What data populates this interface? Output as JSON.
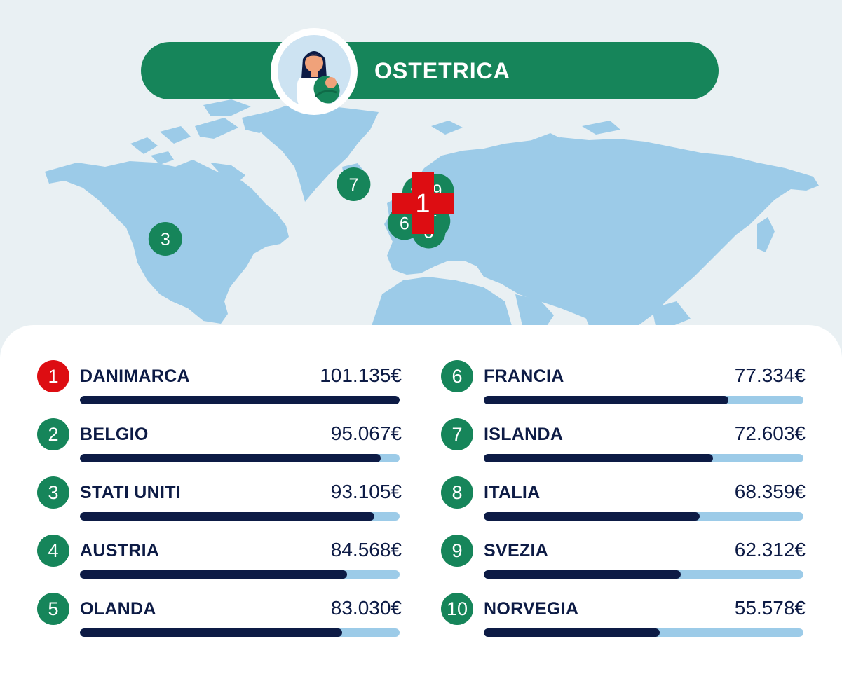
{
  "title": "OSTETRICA",
  "colors": {
    "background": "#e9f0f3",
    "land": "#9ccbe8",
    "green": "#16855a",
    "red": "#dd0d12",
    "navy": "#0d1b45"
  },
  "header": {
    "avatar_icon": "midwife-with-baby-icon"
  },
  "chart_data": {
    "type": "bar",
    "unit": "€",
    "xlim": [
      0,
      101135
    ],
    "categories": [
      "DANIMARCA",
      "BELGIO",
      "STATI UNITI",
      "AUSTRIA",
      "OLANDA",
      "FRANCIA",
      "ISLANDA",
      "ITALIA",
      "SVEZIA",
      "NORVEGIA"
    ],
    "values": [
      101135,
      95067,
      93105,
      84568,
      83030,
      77334,
      72603,
      68359,
      62312,
      55578
    ],
    "rows": [
      {
        "rank": "1",
        "country": "DANIMARCA",
        "value_label": "101.135€",
        "value": 101135
      },
      {
        "rank": "2",
        "country": "BELGIO",
        "value_label": "95.067€",
        "value": 95067
      },
      {
        "rank": "3",
        "country": "STATI UNITI",
        "value_label": "93.105€",
        "value": 93105
      },
      {
        "rank": "4",
        "country": "AUSTRIA",
        "value_label": "84.568€",
        "value": 84568
      },
      {
        "rank": "5",
        "country": "OLANDA",
        "value_label": "83.030€",
        "value": 83030
      },
      {
        "rank": "6",
        "country": "FRANCIA",
        "value_label": "77.334€",
        "value": 77334
      },
      {
        "rank": "7",
        "country": "ISLANDA",
        "value_label": "72.603€",
        "value": 72603
      },
      {
        "rank": "8",
        "country": "ITALIA",
        "value_label": "68.359€",
        "value": 68359
      },
      {
        "rank": "9",
        "country": "SVEZIA",
        "value_label": "62.312€",
        "value": 62312
      },
      {
        "rank": "10",
        "country": "NORVEGIA",
        "value_label": "55.578€",
        "value": 55578
      }
    ]
  },
  "map": {
    "markers": [
      {
        "label": "1",
        "icon": "red-cross-icon",
        "lon": 10.0,
        "lat": 56.0
      },
      {
        "label": "2",
        "lon": 4.5,
        "lat": 50.8
      },
      {
        "label": "3",
        "lon": -98.0,
        "lat": 39.0
      },
      {
        "label": "4",
        "lon": 14.5,
        "lat": 47.5
      },
      {
        "label": "5",
        "lon": 5.3,
        "lat": 52.1
      },
      {
        "label": "6",
        "lon": 2.3,
        "lat": 46.5
      },
      {
        "label": "7",
        "lon": -19.0,
        "lat": 65.0
      },
      {
        "label": "8",
        "lon": 12.5,
        "lat": 42.5
      },
      {
        "label": "9",
        "lon": 16.0,
        "lat": 62.0
      },
      {
        "label": "10",
        "lon": 8.5,
        "lat": 61.0
      }
    ]
  }
}
